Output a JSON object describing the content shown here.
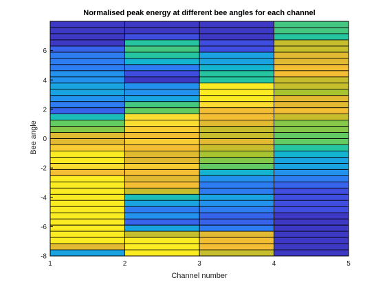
{
  "chart_data": {
    "type": "heatmap",
    "title": "Normalised peak energy at different bee angles for each channel",
    "xlabel": "Channel number",
    "ylabel": "Bee angle",
    "xlim": [
      1,
      5
    ],
    "ylim": [
      -8,
      8
    ],
    "xticks": [
      "1",
      "2",
      "3",
      "4",
      "5"
    ],
    "yticks": [
      "-8",
      "-6",
      "-4",
      "-2",
      "0",
      "2",
      "4",
      "6"
    ],
    "channels": [
      1,
      2,
      3,
      4
    ],
    "colormap": [
      "#3e26a8",
      "#3f51e6",
      "#2887f5",
      "#12b1d8",
      "#22c5a4",
      "#65cb5e",
      "#b4c128",
      "#f1b834",
      "#fbd834",
      "#f9fb15"
    ],
    "grid_lines": true,
    "values": [
      [
        0.05,
        0.05,
        0.05,
        0.5
      ],
      [
        0.05,
        0.05,
        0.05,
        0.5
      ],
      [
        0.05,
        0.1,
        0.05,
        0.45
      ],
      [
        0.05,
        0.45,
        0.1,
        0.7
      ],
      [
        0.15,
        0.5,
        0.1,
        0.7
      ],
      [
        0.2,
        0.45,
        0.3,
        0.75
      ],
      [
        0.2,
        0.35,
        0.3,
        0.75
      ],
      [
        0.2,
        0.2,
        0.35,
        0.8
      ],
      [
        0.25,
        0.1,
        0.45,
        0.8
      ],
      [
        0.25,
        0.05,
        0.45,
        0.7
      ],
      [
        0.3,
        0.25,
        0.95,
        0.7
      ],
      [
        0.3,
        0.25,
        0.95,
        0.65
      ],
      [
        0.25,
        0.3,
        0.95,
        0.75
      ],
      [
        0.2,
        0.5,
        0.9,
        0.75
      ],
      [
        0.15,
        0.55,
        0.8,
        0.8
      ],
      [
        0.4,
        0.9,
        0.8,
        0.7
      ],
      [
        0.55,
        0.9,
        0.75,
        0.6
      ],
      [
        0.6,
        0.85,
        0.7,
        0.6
      ],
      [
        0.75,
        0.8,
        0.7,
        0.55
      ],
      [
        0.75,
        0.85,
        0.75,
        0.55
      ],
      [
        0.85,
        0.8,
        0.7,
        0.45
      ],
      [
        0.95,
        0.75,
        0.65,
        0.35
      ],
      [
        0.95,
        0.75,
        0.6,
        0.3
      ],
      [
        0.9,
        0.85,
        0.55,
        0.3
      ],
      [
        0.8,
        0.8,
        0.35,
        0.25
      ],
      [
        0.95,
        0.75,
        0.25,
        0.2
      ],
      [
        0.95,
        0.8,
        0.2,
        0.15
      ],
      [
        0.95,
        0.7,
        0.2,
        0.1
      ],
      [
        0.95,
        0.4,
        0.3,
        0.1
      ],
      [
        0.95,
        0.3,
        0.25,
        0.1
      ],
      [
        0.95,
        0.2,
        0.2,
        0.1
      ],
      [
        0.95,
        0.25,
        0.15,
        0.05
      ],
      [
        0.95,
        0.15,
        0.15,
        0.05
      ],
      [
        0.95,
        0.3,
        0.2,
        0.05
      ],
      [
        0.95,
        0.7,
        0.75,
        0.05
      ],
      [
        0.95,
        0.95,
        0.8,
        0.05
      ],
      [
        0.75,
        0.95,
        0.8,
        0.05
      ],
      [
        0.3,
        0.95,
        0.7,
        0.05
      ]
    ]
  }
}
